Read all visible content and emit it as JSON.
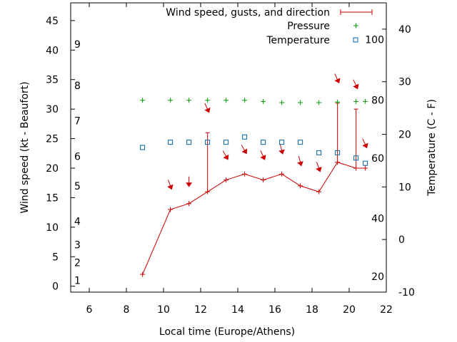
{
  "chart_data": {
    "type": "line",
    "xlabel": "Local time (Europe/Athens)",
    "ylabel": "Wind speed (kt - Beaufort)",
    "y2label": "Temperature (C - F)",
    "xlim": [
      5,
      22
    ],
    "ylim": [
      -1,
      48
    ],
    "y2lim": [
      -10,
      45
    ],
    "x_ticks": [
      "6",
      "8",
      "10",
      "12",
      "14",
      "16",
      "18",
      "20",
      "22"
    ],
    "y_ticks": [
      "0",
      "5",
      "10",
      "15",
      "20",
      "25",
      "30",
      "35",
      "40",
      "45"
    ],
    "y2_ticks": [
      "-10",
      "0",
      "10",
      "20",
      "30",
      "40"
    ],
    "beaufort_labels": [
      {
        "label": "1",
        "at": 1
      },
      {
        "label": "2",
        "at": 4
      },
      {
        "label": "3",
        "at": 7
      },
      {
        "label": "4",
        "at": 11
      },
      {
        "label": "5",
        "at": 17
      },
      {
        "label": "6",
        "at": 22
      },
      {
        "label": "7",
        "at": 28
      },
      {
        "label": "8",
        "at": 34
      },
      {
        "label": "9",
        "at": 41
      }
    ],
    "fahrenheit_labels": [
      {
        "label": "20",
        "at": -7
      },
      {
        "label": "40",
        "at": 4
      },
      {
        "label": "60",
        "at": 15.5
      },
      {
        "label": "80",
        "at": 26.5
      },
      {
        "label": "100",
        "at": 38
      }
    ],
    "x": [
      8.87,
      10.37,
      11.37,
      12.37,
      13.37,
      14.37,
      15.37,
      16.37,
      17.37,
      18.37,
      19.37,
      20.37,
      20.87
    ],
    "series": [
      {
        "name": "Wind speed, gusts, and direction",
        "color": "#cc0000",
        "values": [
          2,
          13,
          14,
          16,
          18,
          19,
          18,
          19,
          17,
          16,
          21,
          20,
          20
        ],
        "gusts": [
          null,
          null,
          null,
          26,
          null,
          null,
          null,
          null,
          null,
          null,
          31,
          30,
          null
        ],
        "direction_arrows": [
          {
            "x": 10.37,
            "y": 17,
            "angle": 20
          },
          {
            "x": 11.37,
            "y": 17.5,
            "angle": 0
          },
          {
            "x": 12.37,
            "y": 30,
            "angle": 25
          },
          {
            "x": 13.37,
            "y": 22,
            "angle": 30
          },
          {
            "x": 14.37,
            "y": 23,
            "angle": 30
          },
          {
            "x": 15.37,
            "y": 22,
            "angle": 25
          },
          {
            "x": 16.37,
            "y": 23,
            "angle": 15
          },
          {
            "x": 17.37,
            "y": 21,
            "angle": 15
          },
          {
            "x": 18.37,
            "y": 20,
            "angle": 20
          },
          {
            "x": 19.37,
            "y": 35,
            "angle": 25
          },
          {
            "x": 20.37,
            "y": 34,
            "angle": 25
          },
          {
            "x": 20.87,
            "y": 24,
            "angle": 25
          }
        ]
      },
      {
        "name": "Pressure",
        "color": "#009900",
        "values": [
          31.5,
          31.5,
          31.5,
          31.5,
          31.5,
          31.5,
          31.3,
          31.1,
          31.1,
          31.1,
          31.2,
          31.3,
          31.3
        ]
      },
      {
        "name": "Temperature",
        "color": "#0066aa",
        "axis": "y2",
        "values": [
          17.5,
          18.5,
          18.5,
          18.5,
          18.5,
          19.5,
          18.5,
          18.5,
          18.5,
          16.5,
          16.5,
          15.5,
          14.5
        ]
      }
    ],
    "legend_position": "top-right",
    "grid": false
  }
}
